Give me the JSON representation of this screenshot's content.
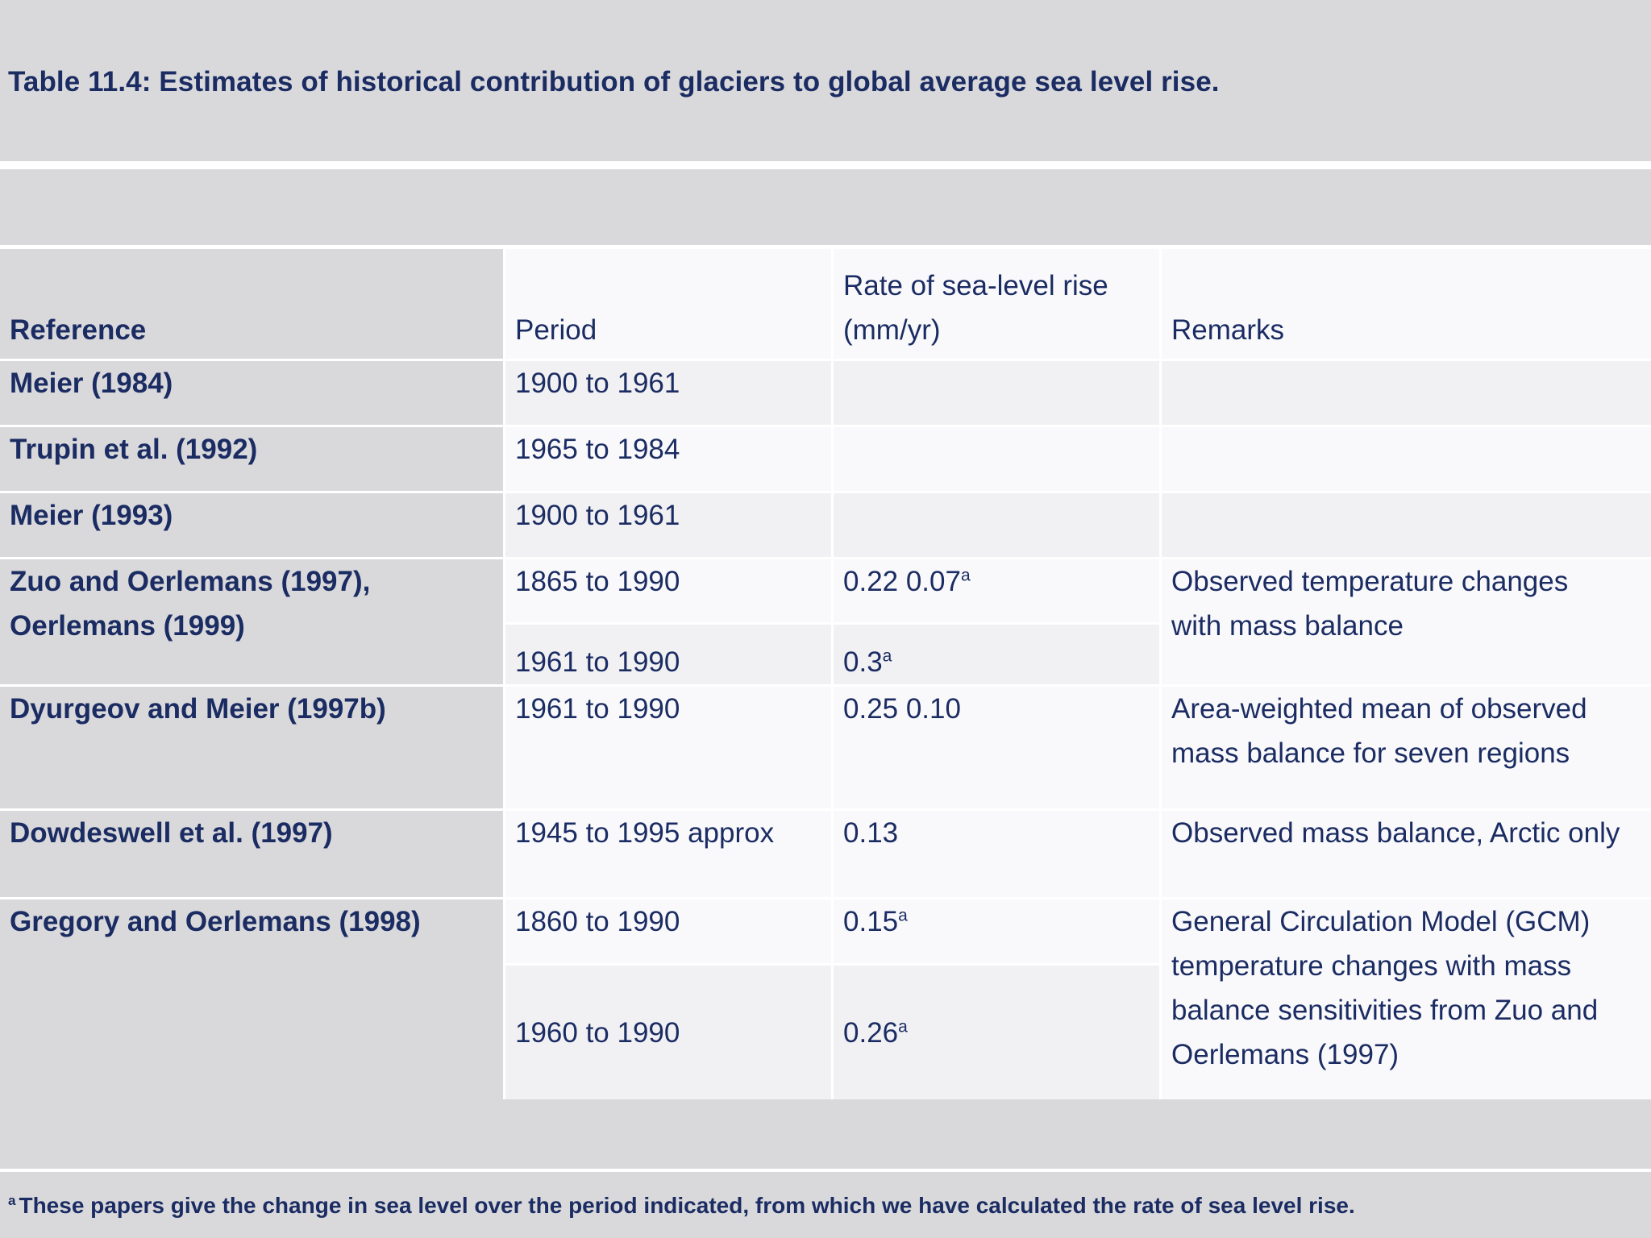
{
  "title": "Table 11.4: Estimates of historical contribution of glaciers to global average sea level rise.",
  "table": {
    "headers": {
      "reference": "Reference",
      "period": "Period",
      "rate_line1": "Rate of sea-level rise",
      "rate_line2": "(mm/yr)",
      "remarks": "Remarks"
    },
    "rows": [
      {
        "reference": "Meier (1984)",
        "period": "1900 to 1961",
        "rate": "",
        "remarks": ""
      },
      {
        "reference": "Trupin et al. (1992)",
        "period": "1965 to 1984",
        "rate": "",
        "remarks": ""
      },
      {
        "reference": "Meier (1993)",
        "period": "1900 to 1961",
        "rate": "",
        "remarks": ""
      },
      {
        "reference_line1": "Zuo and Oerlemans (1997),",
        "reference_line2": "Oerlemans (1999)",
        "sub": [
          {
            "period": "1865 to 1990",
            "rate": "0.22 0.07",
            "rate_sup": "a"
          },
          {
            "period": "1961 to 1990",
            "rate": "0.3",
            "rate_sup": "a"
          }
        ],
        "remarks_line1": "Observed temperature changes",
        "remarks_line2": "with mass balance"
      },
      {
        "reference": "Dyurgeov and Meier (1997b)",
        "period": "1961 to 1990",
        "rate": "0.25 0.10",
        "remarks_line1": "Area-weighted mean of observed",
        "remarks_line2": "mass balance for seven regions"
      },
      {
        "reference": "Dowdeswell et al. (1997)",
        "period": "1945 to 1995 approx",
        "rate": "0.13",
        "remarks": "Observed mass balance, Arctic only"
      },
      {
        "reference": "Gregory and Oerlemans (1998)",
        "sub": [
          {
            "period": "1860 to 1990",
            "rate": "0.15",
            "rate_sup": "a"
          },
          {
            "period": "1960 to 1990",
            "rate": "0.26",
            "rate_sup": "a"
          }
        ],
        "remarks_lines": [
          "General Circulation Model (GCM)",
          "temperature changes with mass",
          "balance sensitivities from Zuo and",
          "Oerlemans (1997)"
        ]
      }
    ]
  },
  "footnote_marker": "a",
  "footnote": "These papers give the change in sea level over the period indicated, from which we have calculated the rate of sea level rise."
}
